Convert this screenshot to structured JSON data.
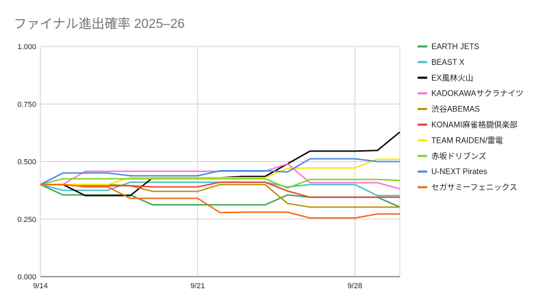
{
  "chart_data": {
    "type": "line",
    "title": "ファイナル進出確率 2025–26",
    "xlabel": "",
    "ylabel": "",
    "ylim": [
      0,
      1
    ],
    "yticks": [
      "0.000",
      "0.250",
      "0.500",
      "0.750",
      "1.000"
    ],
    "ytick_values": [
      0,
      0.25,
      0.5,
      0.75,
      1
    ],
    "xlim": [
      0,
      16
    ],
    "xticks": [
      "9/14",
      "9/21",
      "9/28"
    ],
    "xtick_values": [
      0,
      7,
      14
    ],
    "x": [
      0,
      1,
      2,
      3,
      4,
      5,
      6,
      7,
      8,
      9,
      10,
      11,
      12,
      13,
      14,
      15,
      16
    ],
    "grid": true,
    "legend_position": "right",
    "series": [
      {
        "name": "EARTH JETS",
        "color": "#34a853",
        "values": [
          0.4,
          0.355,
          0.355,
          0.355,
          0.355,
          0.312,
          0.312,
          0.312,
          0.312,
          0.312,
          0.312,
          0.355,
          0.345,
          0.345,
          0.345,
          0.345,
          0.302
        ]
      },
      {
        "name": "BEAST X",
        "color": "#46bdc6",
        "values": [
          0.4,
          0.375,
          0.375,
          0.375,
          0.41,
          0.41,
          0.41,
          0.41,
          0.41,
          0.41,
          0.41,
          0.39,
          0.4,
          0.4,
          0.4,
          0.352,
          0.352
        ]
      },
      {
        "name": "EX風林火山",
        "color": "#000000",
        "values": [
          0.4,
          0.4,
          0.352,
          0.352,
          0.352,
          0.43,
          0.43,
          0.43,
          0.43,
          0.435,
          0.435,
          0.49,
          0.545,
          0.545,
          0.545,
          0.548,
          0.628
        ]
      },
      {
        "name": "KADOKAWAサクラナイツ",
        "color": "#ff6fd8",
        "values": [
          0.4,
          0.4,
          0.458,
          0.458,
          0.458,
          0.458,
          0.458,
          0.458,
          0.458,
          0.458,
          0.458,
          0.49,
          0.408,
          0.408,
          0.408,
          0.408,
          0.382
        ]
      },
      {
        "name": "渋谷ABEMAS",
        "color": "#bf9000",
        "values": [
          0.4,
          0.4,
          0.4,
          0.4,
          0.395,
          0.37,
          0.37,
          0.37,
          0.4,
          0.4,
          0.4,
          0.318,
          0.302,
          0.302,
          0.302,
          0.302,
          0.302
        ]
      },
      {
        "name": "KONAMI麻雀格闘倶楽部",
        "color": "#ea4335",
        "values": [
          0.4,
          0.4,
          0.395,
          0.395,
          0.395,
          0.39,
          0.39,
          0.39,
          0.41,
          0.41,
          0.41,
          0.372,
          0.345,
          0.345,
          0.345,
          0.345,
          0.345
        ]
      },
      {
        "name": "TEAM RAIDEN/雷電",
        "color": "#ffe600",
        "values": [
          0.4,
          0.4,
          0.4,
          0.4,
          0.43,
          0.43,
          0.43,
          0.43,
          0.43,
          0.43,
          0.43,
          0.47,
          0.472,
          0.472,
          0.472,
          0.51,
          0.51
        ]
      },
      {
        "name": "赤坂ドリブンズ",
        "color": "#7ed321",
        "values": [
          0.4,
          0.425,
          0.425,
          0.425,
          0.425,
          0.425,
          0.425,
          0.425,
          0.425,
          0.425,
          0.425,
          0.385,
          0.422,
          0.422,
          0.422,
          0.422,
          0.418
        ]
      },
      {
        "name": "U-NEXT Pirates",
        "color": "#4a86e8",
        "values": [
          0.4,
          0.45,
          0.45,
          0.45,
          0.438,
          0.438,
          0.438,
          0.438,
          0.46,
          0.46,
          0.46,
          0.455,
          0.512,
          0.512,
          0.512,
          0.5,
          0.5
        ]
      },
      {
        "name": "セガサミーフェニックス",
        "color": "#f2680f",
        "values": [
          0.4,
          0.4,
          0.39,
          0.39,
          0.34,
          0.34,
          0.34,
          0.34,
          0.278,
          0.28,
          0.28,
          0.28,
          0.255,
          0.255,
          0.255,
          0.272,
          0.272
        ]
      }
    ]
  }
}
